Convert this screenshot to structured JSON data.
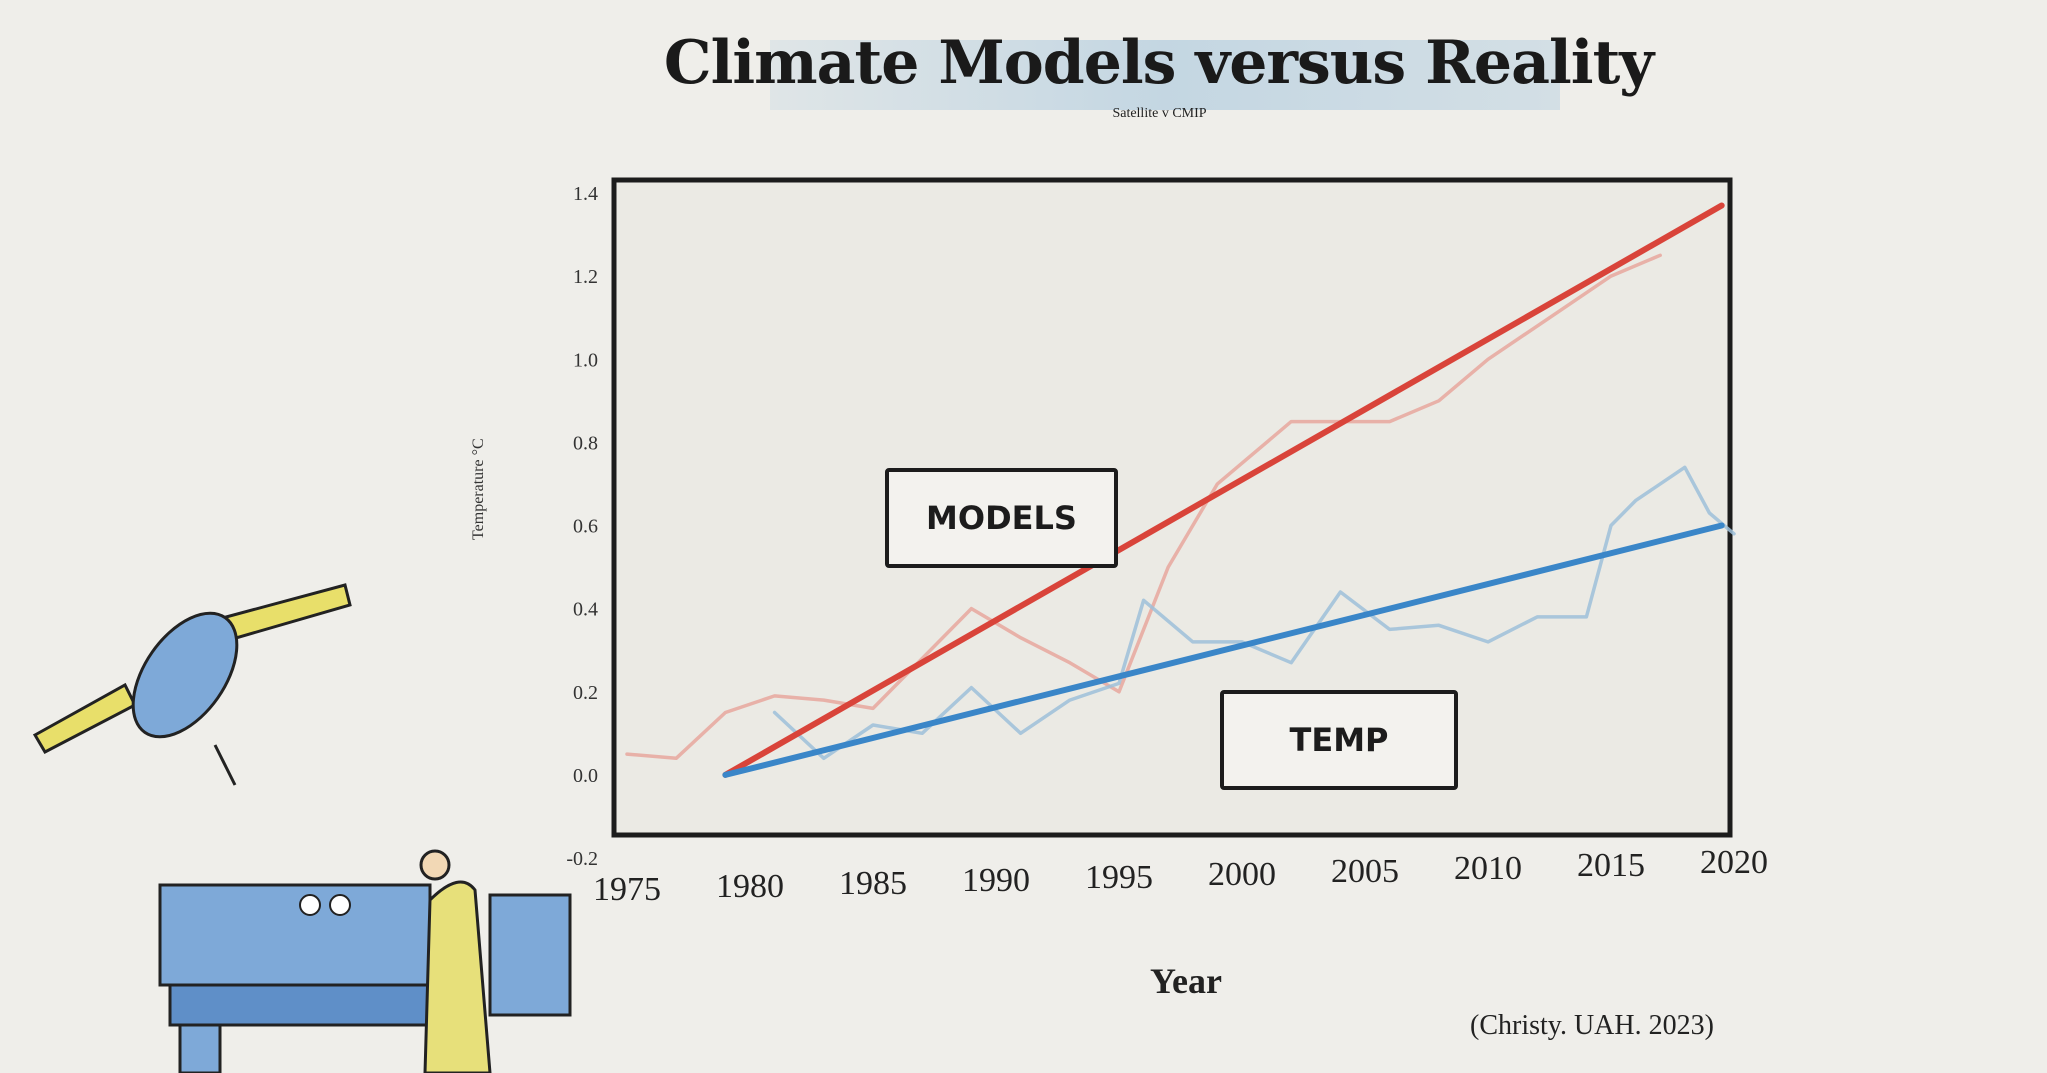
{
  "chart_data": {
    "type": "line",
    "title": "Climate Models versus Reality",
    "subtitle": "Satellite v CMIP",
    "xlabel": "Year",
    "ylabel": "Temperature °C",
    "xlim": [
      1975,
      2020
    ],
    "ylim": [
      -0.2,
      1.4
    ],
    "x_ticks": [
      "1975",
      "1980",
      "1985",
      "1990",
      "1995",
      "2000",
      "2005",
      "2010",
      "2015",
      "2020"
    ],
    "y_ticks": [
      "1.4",
      "1.2",
      "1.0",
      "0.8",
      "0.6",
      "0.4",
      "0.2",
      "0.0",
      "-0.2"
    ],
    "grid": false,
    "series": [
      {
        "name": "MODELS",
        "kind": "trend",
        "color": "#d9443a",
        "x": [
          1979,
          2019.5
        ],
        "y": [
          0.0,
          1.37
        ]
      },
      {
        "name": "TEMP",
        "kind": "trend",
        "color": "#3a86c8",
        "x": [
          1979,
          2019.5
        ],
        "y": [
          0.0,
          0.6
        ]
      },
      {
        "kind": "raw",
        "color": "#e8a79e",
        "x": [
          1975,
          1977,
          1979,
          1981,
          1983,
          1985,
          1987,
          1989,
          1991,
          1993,
          1995,
          1997,
          1999,
          2002,
          2004,
          2006,
          2008,
          2010,
          2013,
          2015,
          2017
        ],
        "y": [
          0.05,
          0.04,
          0.15,
          0.19,
          0.18,
          0.16,
          0.28,
          0.4,
          0.33,
          0.27,
          0.2,
          0.5,
          0.7,
          0.85,
          0.85,
          0.85,
          0.9,
          1.0,
          1.12,
          1.2,
          1.25
        ]
      },
      {
        "kind": "raw",
        "color": "#9dbfd9",
        "x": [
          1981,
          1983,
          1985,
          1987,
          1989,
          1991,
          1993,
          1995,
          1996,
          1998,
          2000,
          2002,
          2004,
          2006,
          2008,
          2010,
          2012,
          2014,
          2015,
          2016,
          2018,
          2019,
          2020
        ],
        "y": [
          0.15,
          0.04,
          0.12,
          0.1,
          0.21,
          0.1,
          0.18,
          0.22,
          0.42,
          0.32,
          0.32,
          0.27,
          0.44,
          0.35,
          0.36,
          0.32,
          0.38,
          0.38,
          0.6,
          0.66,
          0.74,
          0.63,
          0.58
        ]
      }
    ],
    "annotations": [
      "MODELS",
      "TEMP"
    ],
    "source": "(Christy. UAH. 2023)"
  }
}
